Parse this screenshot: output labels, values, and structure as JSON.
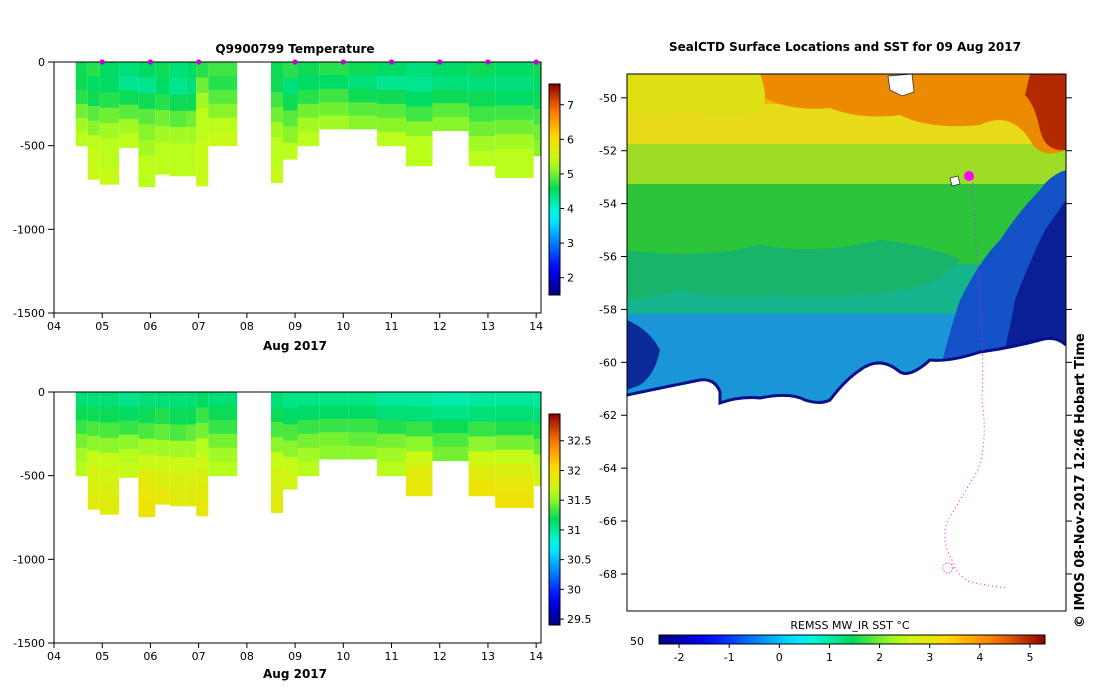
{
  "chart_data": [
    {
      "id": "temperature",
      "type": "heatmap",
      "title": "Q9900799  Temperature",
      "xlabel": "Aug 2017",
      "x_ticks": [
        "04",
        "05",
        "06",
        "07",
        "08",
        "09",
        "10",
        "11",
        "12",
        "13",
        "14"
      ],
      "xlim": [
        4,
        14.1
      ],
      "y_ticks": [
        0,
        -500,
        -1000,
        -1500
      ],
      "ylim": [
        -1500,
        0
      ],
      "colorbar": {
        "min": 1.5,
        "max": 7.6,
        "ticks": [
          2,
          3,
          4,
          5,
          6,
          7
        ]
      },
      "profile_markers": [
        5.0,
        6.0,
        7.0,
        9.0,
        10.0,
        11.0,
        12.0,
        13.0,
        14.0
      ],
      "marker_color": "#cc00cc",
      "profiles": [
        {
          "x0": 4.45,
          "x1": 4.7,
          "depth": 500,
          "values": [
            4.6,
            4.6,
            4.7,
            5.0,
            5.2,
            5.3
          ]
        },
        {
          "x0": 4.7,
          "x1": 4.95,
          "depth": 700,
          "values": [
            4.7,
            4.5,
            4.6,
            4.9,
            5.1,
            5.3,
            5.4,
            5.4
          ]
        },
        {
          "x0": 4.95,
          "x1": 5.35,
          "depth": 730,
          "values": [
            4.5,
            4.5,
            4.7,
            5.0,
            5.2,
            5.3,
            5.3,
            5.4
          ]
        },
        {
          "x0": 5.35,
          "x1": 5.75,
          "depth": 510,
          "values": [
            4.4,
            4.3,
            4.6,
            4.9,
            5.2,
            5.3
          ]
        },
        {
          "x0": 5.75,
          "x1": 6.1,
          "depth": 745,
          "values": [
            4.5,
            4.3,
            4.6,
            4.9,
            5.1,
            5.2,
            5.3,
            5.3
          ]
        },
        {
          "x0": 6.1,
          "x1": 6.4,
          "depth": 670,
          "values": [
            4.6,
            4.5,
            4.7,
            5.0,
            5.2,
            5.3,
            5.3
          ]
        },
        {
          "x0": 6.4,
          "x1": 6.75,
          "depth": 680,
          "values": [
            4.4,
            4.3,
            4.6,
            4.9,
            5.2,
            5.3,
            5.3
          ]
        },
        {
          "x0": 6.75,
          "x1": 6.95,
          "depth": 680,
          "values": [
            4.5,
            4.4,
            4.6,
            5.0,
            5.2,
            5.3,
            5.3
          ]
        },
        {
          "x0": 6.95,
          "x1": 7.2,
          "depth": 740,
          "values": [
            4.7,
            5.0,
            5.2,
            5.3,
            5.3,
            5.4,
            5.4,
            5.4
          ]
        },
        {
          "x0": 7.2,
          "x1": 7.8,
          "depth": 500,
          "values": [
            4.8,
            4.7,
            4.9,
            5.1,
            5.3,
            5.4
          ]
        },
        {
          "x0": 8.5,
          "x1": 8.75,
          "depth": 720,
          "values": [
            4.6,
            4.6,
            4.8,
            5.0,
            5.2,
            5.3,
            5.3,
            5.4
          ]
        },
        {
          "x0": 8.75,
          "x1": 9.05,
          "depth": 580,
          "values": [
            4.7,
            4.4,
            4.6,
            4.9,
            5.1,
            5.3
          ]
        },
        {
          "x0": 9.05,
          "x1": 9.5,
          "depth": 500,
          "values": [
            4.6,
            4.5,
            4.7,
            5.0,
            5.2,
            5.3
          ]
        },
        {
          "x0": 9.5,
          "x1": 10.1,
          "depth": 400,
          "values": [
            4.7,
            4.5,
            4.8,
            5.0,
            5.2
          ]
        },
        {
          "x0": 10.1,
          "x1": 10.7,
          "depth": 400,
          "values": [
            4.6,
            4.4,
            4.6,
            4.9,
            5.1
          ]
        },
        {
          "x0": 10.7,
          "x1": 11.3,
          "depth": 500,
          "values": [
            4.5,
            4.3,
            4.6,
            4.9,
            5.1,
            5.3
          ]
        },
        {
          "x0": 11.3,
          "x1": 11.85,
          "depth": 620,
          "values": [
            4.4,
            4.3,
            4.5,
            4.8,
            5.1,
            5.3,
            5.3
          ]
        },
        {
          "x0": 11.85,
          "x1": 12.6,
          "depth": 410,
          "values": [
            4.5,
            4.4,
            4.6,
            4.9,
            5.1
          ]
        },
        {
          "x0": 12.6,
          "x1": 13.15,
          "depth": 620,
          "values": [
            4.6,
            4.4,
            4.6,
            4.8,
            5.0,
            5.2,
            5.3
          ]
        },
        {
          "x0": 13.15,
          "x1": 13.95,
          "depth": 690,
          "values": [
            4.5,
            4.4,
            4.5,
            4.8,
            5.0,
            5.2,
            5.3,
            5.3
          ]
        },
        {
          "x0": 13.95,
          "x1": 14.1,
          "depth": 560,
          "values": [
            4.6,
            4.5,
            4.6,
            4.8,
            5.0,
            5.1
          ]
        }
      ]
    },
    {
      "id": "salinity",
      "type": "heatmap",
      "title": "",
      "xlabel": "Aug 2017",
      "x_ticks": [
        "04",
        "05",
        "06",
        "07",
        "08",
        "09",
        "10",
        "11",
        "12",
        "13",
        "14"
      ],
      "xlim": [
        4,
        14.1
      ],
      "y_ticks": [
        0,
        -500,
        -1000,
        -1500
      ],
      "ylim": [
        -1500,
        0
      ],
      "colorbar": {
        "min": 29.4,
        "max": 32.95,
        "ticks": [
          "29.5",
          "30",
          "30.5",
          "31",
          "31.5",
          "32",
          "32.5"
        ]
      },
      "profiles": [
        {
          "x0": 4.45,
          "x1": 4.7,
          "depth": 500,
          "values": [
            31.1,
            31.2,
            31.3,
            31.45,
            31.55,
            31.6
          ]
        },
        {
          "x0": 4.7,
          "x1": 4.95,
          "depth": 700,
          "values": [
            31.1,
            31.2,
            31.35,
            31.5,
            31.65,
            31.75,
            31.8,
            31.85
          ]
        },
        {
          "x0": 4.95,
          "x1": 5.35,
          "depth": 730,
          "values": [
            31.1,
            31.2,
            31.35,
            31.5,
            31.65,
            31.75,
            31.8,
            31.85
          ]
        },
        {
          "x0": 5.35,
          "x1": 5.75,
          "depth": 510,
          "values": [
            31.05,
            31.15,
            31.3,
            31.5,
            31.6,
            31.65
          ]
        },
        {
          "x0": 5.75,
          "x1": 6.1,
          "depth": 745,
          "values": [
            31.1,
            31.2,
            31.35,
            31.55,
            31.7,
            31.85,
            31.9,
            31.95
          ]
        },
        {
          "x0": 6.1,
          "x1": 6.4,
          "depth": 670,
          "values": [
            31.1,
            31.25,
            31.4,
            31.55,
            31.7,
            31.8,
            31.9
          ]
        },
        {
          "x0": 6.4,
          "x1": 6.75,
          "depth": 680,
          "values": [
            31.1,
            31.2,
            31.35,
            31.55,
            31.7,
            31.8,
            31.85
          ]
        },
        {
          "x0": 6.75,
          "x1": 6.95,
          "depth": 680,
          "values": [
            31.1,
            31.2,
            31.4,
            31.55,
            31.7,
            31.8,
            31.85
          ]
        },
        {
          "x0": 6.95,
          "x1": 7.2,
          "depth": 740,
          "values": [
            31.15,
            31.3,
            31.45,
            31.6,
            31.7,
            31.8,
            31.85,
            31.9
          ]
        },
        {
          "x0": 7.2,
          "x1": 7.8,
          "depth": 500,
          "values": [
            31.1,
            31.2,
            31.3,
            31.45,
            31.55,
            31.6
          ]
        },
        {
          "x0": 8.5,
          "x1": 8.75,
          "depth": 720,
          "values": [
            31.1,
            31.2,
            31.35,
            31.5,
            31.65,
            31.75,
            31.8,
            31.85
          ]
        },
        {
          "x0": 8.75,
          "x1": 9.05,
          "depth": 580,
          "values": [
            31.05,
            31.15,
            31.35,
            31.5,
            31.65,
            31.75
          ]
        },
        {
          "x0": 9.05,
          "x1": 9.5,
          "depth": 500,
          "values": [
            31.05,
            31.15,
            31.3,
            31.45,
            31.55,
            31.6
          ]
        },
        {
          "x0": 9.5,
          "x1": 10.1,
          "depth": 400,
          "values": [
            31.05,
            31.15,
            31.3,
            31.45,
            31.5
          ]
        },
        {
          "x0": 10.1,
          "x1": 10.7,
          "depth": 400,
          "values": [
            31.05,
            31.15,
            31.3,
            31.4,
            31.5
          ]
        },
        {
          "x0": 10.7,
          "x1": 11.3,
          "depth": 500,
          "values": [
            31.0,
            31.1,
            31.25,
            31.45,
            31.55,
            31.6
          ]
        },
        {
          "x0": 11.3,
          "x1": 11.85,
          "depth": 620,
          "values": [
            31.0,
            31.1,
            31.3,
            31.5,
            31.7,
            31.85,
            31.9
          ]
        },
        {
          "x0": 11.85,
          "x1": 12.6,
          "depth": 410,
          "values": [
            30.95,
            31.05,
            31.2,
            31.35,
            31.45
          ]
        },
        {
          "x0": 12.6,
          "x1": 13.15,
          "depth": 620,
          "values": [
            31.0,
            31.1,
            31.3,
            31.5,
            31.7,
            31.85,
            31.95
          ]
        },
        {
          "x0": 13.15,
          "x1": 13.95,
          "depth": 690,
          "values": [
            31.0,
            31.1,
            31.25,
            31.45,
            31.65,
            31.8,
            31.9,
            31.95
          ]
        },
        {
          "x0": 13.95,
          "x1": 14.1,
          "depth": 560,
          "values": [
            31.0,
            31.1,
            31.25,
            31.4,
            31.6,
            31.7
          ]
        }
      ]
    },
    {
      "id": "sst-map",
      "type": "heatmap",
      "title": "SealCTD Surface Locations and SST for 09 Aug 2017",
      "y_ticks": [
        "-50",
        "-52",
        "-54",
        "-56",
        "-58",
        "-60",
        "-62",
        "-64",
        "-66",
        "-68"
      ],
      "ylim": [
        -69.4,
        -49.1
      ],
      "colorbar": {
        "label": "REMSS MW_IR SST °C",
        "min": -2.4,
        "max": 5.3,
        "ticks": [
          "-2",
          "-1",
          "0",
          "1",
          "2",
          "3",
          "4",
          "5"
        ],
        "left_label": "50"
      },
      "land_color": "#ffffff",
      "track_color": "#ff00ff"
    }
  ],
  "footer": {
    "credit": "© IMOS 08-Nov-2017 12:46 Hobart Time"
  }
}
